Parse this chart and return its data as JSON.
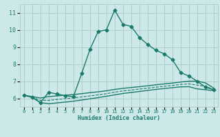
{
  "xlabel": "Humidex (Indice chaleur)",
  "bg_color": "#cce8e8",
  "grid_color": "#b0cccc",
  "line_color": "#1a7a6a",
  "xlim": [
    -0.5,
    23.5
  ],
  "ylim": [
    5.5,
    11.5
  ],
  "xticks": [
    0,
    1,
    2,
    3,
    4,
    5,
    6,
    7,
    8,
    9,
    10,
    11,
    12,
    13,
    14,
    15,
    16,
    17,
    18,
    19,
    20,
    21,
    22,
    23
  ],
  "yticks": [
    6,
    7,
    8,
    9,
    10,
    11
  ],
  "series": [
    {
      "x": [
        0,
        1,
        2,
        3,
        4,
        5,
        6,
        7,
        8,
        9,
        10,
        11,
        12,
        13,
        14,
        15,
        16,
        17,
        18,
        19,
        20,
        21,
        22,
        23
      ],
      "y": [
        6.2,
        6.05,
        5.75,
        6.35,
        6.25,
        6.15,
        6.1,
        7.45,
        8.85,
        9.9,
        10.0,
        11.15,
        10.32,
        10.2,
        9.55,
        9.15,
        8.8,
        8.6,
        8.25,
        7.5,
        7.3,
        7.0,
        6.65,
        6.5
      ],
      "marker": "D",
      "markersize": 2.5,
      "linewidth": 1.0,
      "linestyle": "-",
      "dashed": false
    },
    {
      "x": [
        0,
        1,
        2,
        3,
        4,
        5,
        6,
        7,
        8,
        9,
        10,
        11,
        12,
        13,
        14,
        15,
        16,
        17,
        18,
        19,
        20,
        21,
        22,
        23
      ],
      "y": [
        6.18,
        6.1,
        6.02,
        6.1,
        6.14,
        6.18,
        6.22,
        6.27,
        6.33,
        6.38,
        6.44,
        6.52,
        6.58,
        6.63,
        6.68,
        6.73,
        6.79,
        6.84,
        6.89,
        6.95,
        7.0,
        7.0,
        6.9,
        6.6
      ],
      "marker": null,
      "markersize": 0,
      "linewidth": 1.0,
      "linestyle": "-",
      "dashed": false
    },
    {
      "x": [
        0,
        1,
        2,
        3,
        4,
        5,
        6,
        7,
        8,
        9,
        10,
        11,
        12,
        13,
        14,
        15,
        16,
        17,
        18,
        19,
        20,
        21,
        22,
        23
      ],
      "y": [
        6.18,
        6.05,
        5.75,
        5.68,
        5.73,
        5.78,
        5.83,
        5.9,
        5.97,
        6.04,
        6.12,
        6.2,
        6.28,
        6.34,
        6.4,
        6.46,
        6.52,
        6.57,
        6.62,
        6.67,
        6.68,
        6.55,
        6.5,
        6.45
      ],
      "marker": null,
      "markersize": 0,
      "linewidth": 1.0,
      "linestyle": "-",
      "dashed": false
    },
    {
      "x": [
        0,
        1,
        2,
        3,
        4,
        5,
        6,
        7,
        8,
        9,
        10,
        11,
        12,
        13,
        14,
        15,
        16,
        17,
        18,
        19,
        20,
        21,
        22,
        23
      ],
      "y": [
        6.18,
        6.07,
        5.88,
        5.88,
        5.93,
        5.98,
        6.03,
        6.08,
        6.14,
        6.2,
        6.27,
        6.36,
        6.43,
        6.48,
        6.54,
        6.59,
        6.65,
        6.7,
        6.75,
        6.81,
        6.84,
        6.77,
        6.7,
        6.52
      ],
      "marker": null,
      "markersize": 0,
      "linewidth": 0.8,
      "linestyle": "--",
      "dashed": true
    }
  ]
}
